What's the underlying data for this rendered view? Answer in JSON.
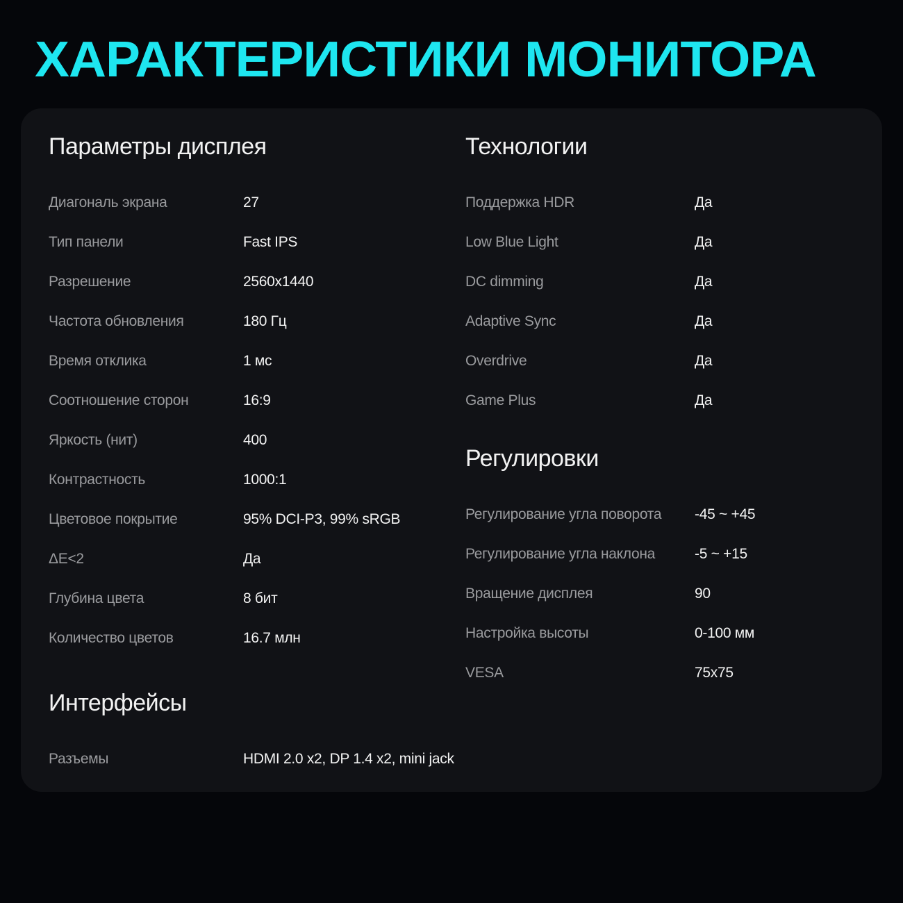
{
  "title": "ХАРАКТЕРИСТИКИ МОНИТОРА",
  "accent_color": "#1ee6f0",
  "display": {
    "heading": "Параметры дисплея",
    "rows": [
      {
        "label": "Диагональ экрана",
        "value": "27"
      },
      {
        "label": "Тип панели",
        "value": "Fast IPS"
      },
      {
        "label": "Разрешение",
        "value": "2560x1440"
      },
      {
        "label": "Частота обновления",
        "value": "180 Гц"
      },
      {
        "label": "Время отклика",
        "value": "1 мс"
      },
      {
        "label": "Соотношение сторон",
        "value": "16:9"
      },
      {
        "label": "Яркость (нит)",
        "value": "400"
      },
      {
        "label": "Контрастность",
        "value": "1000:1"
      },
      {
        "label": "Цветовое покрытие",
        "value": "95%  DCI-P3, 99% sRGB"
      },
      {
        "label": "ΔE<2",
        "value": "Да"
      },
      {
        "label": "Глубина цвета",
        "value": "8 бит"
      },
      {
        "label": "Количество цветов",
        "value": "16.7 млн"
      }
    ]
  },
  "interfaces": {
    "heading": "Интерфейсы",
    "rows": [
      {
        "label": "Разъемы",
        "value": "HDMI 2.0 x2, DP 1.4 x2, mini jack"
      }
    ]
  },
  "technologies": {
    "heading": "Технологии",
    "rows": [
      {
        "label": "Поддержка HDR",
        "value": "Да"
      },
      {
        "label": "Low Blue Light",
        "value": "Да"
      },
      {
        "label": "DC dimming",
        "value": "Да"
      },
      {
        "label": "Adaptive Sync",
        "value": "Да"
      },
      {
        "label": "Overdrive",
        "value": "Да"
      },
      {
        "label": "Game Plus",
        "value": "Да"
      }
    ]
  },
  "adjustments": {
    "heading": "Регулировки",
    "rows": [
      {
        "label": "Регулирование угла поворота",
        "value": "-45 ~ +45"
      },
      {
        "label": "Регулирование угла наклона",
        "value": "-5 ~ +15"
      },
      {
        "label": "Вращение дисплея",
        "value": "90"
      },
      {
        "label": "Настройка высоты",
        "value": "0-100 мм"
      },
      {
        "label": "VESA",
        "value": "75x75"
      }
    ]
  }
}
